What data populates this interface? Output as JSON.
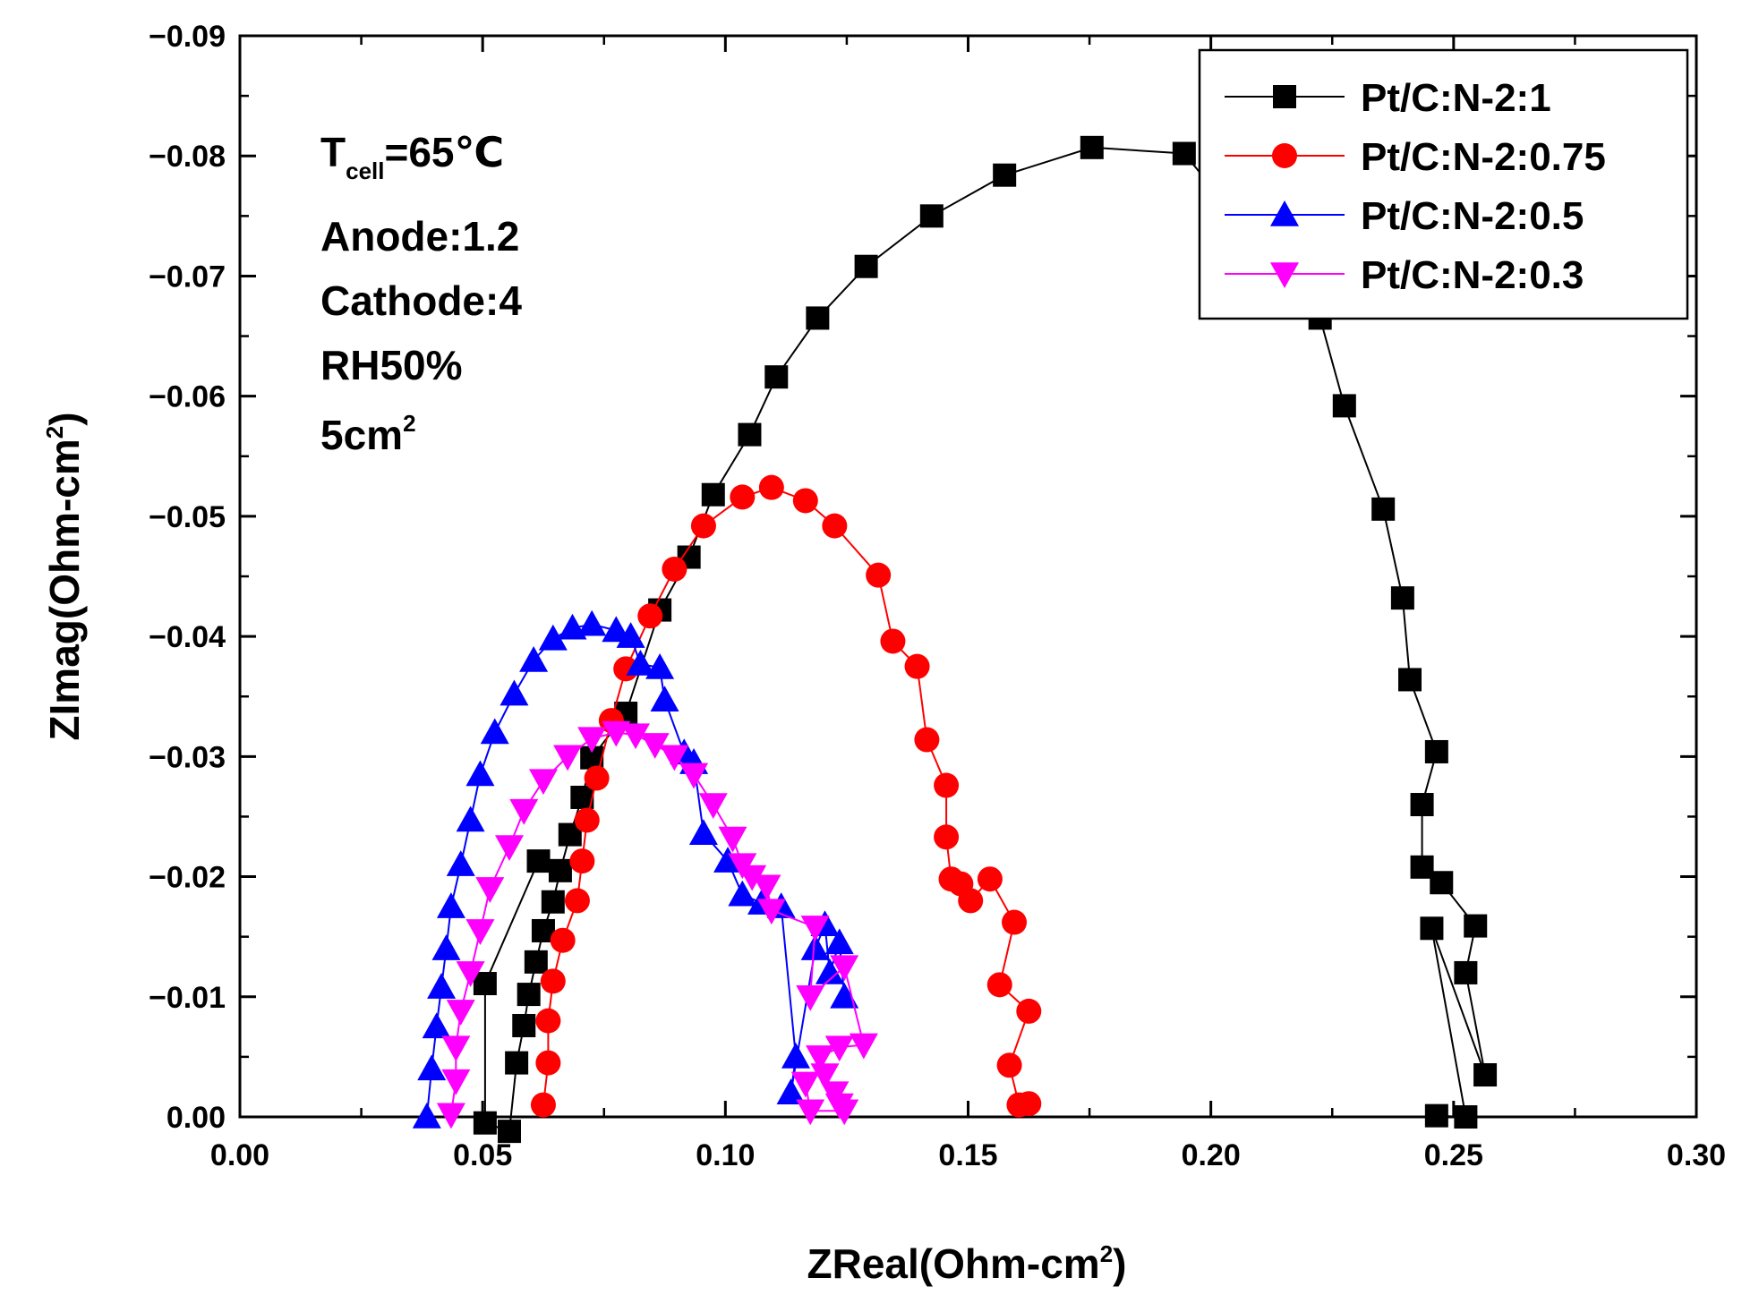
{
  "chart_data": {
    "type": "scatter",
    "title": "",
    "xlabel": "ZReal(Ohm-cm",
    "xlabel_sup": "2",
    "xlabel_close": ")",
    "ylabel": "ZImag(Ohm-cm",
    "ylabel_sup": "2",
    "ylabel_close": ")",
    "xlim": [
      0,
      0.3
    ],
    "ylim": [
      0,
      -0.09
    ],
    "xticks": [
      "0.00",
      "0.05",
      "0.10",
      "0.15",
      "0.20",
      "0.25",
      "0.30"
    ],
    "yticks": [
      "0.00",
      "−0.01",
      "−0.02",
      "−0.03",
      "−0.04",
      "−0.05",
      "−0.06",
      "−0.07",
      "−0.08",
      "−0.09"
    ],
    "legend_position": "top-right",
    "annotations": {
      "tcell_main": "T",
      "tcell_sub": "cell",
      "tcell_value": "=65℃",
      "anode": "Anode:1.2",
      "cathode": "Cathode:4",
      "rh": "RH50%",
      "area_main": "5cm",
      "area_sup": "2"
    },
    "series": [
      {
        "name": "Pt/C:N-2:1",
        "color": "#000000",
        "marker": "square",
        "points": [
          [
            0.0615,
            -0.0213
          ],
          [
            0.0505,
            -0.0111
          ],
          [
            0.0505,
            0.0005
          ],
          [
            0.0555,
            0.0012
          ],
          [
            0.057,
            -0.0045
          ],
          [
            0.0585,
            -0.0076
          ],
          [
            0.0595,
            -0.0102
          ],
          [
            0.061,
            -0.0129
          ],
          [
            0.0625,
            -0.0155
          ],
          [
            0.0645,
            -0.0179
          ],
          [
            0.066,
            -0.0205
          ],
          [
            0.068,
            -0.0235
          ],
          [
            0.0705,
            -0.0266
          ],
          [
            0.0725,
            -0.0299
          ],
          [
            0.0795,
            -0.0336
          ],
          [
            0.0865,
            -0.0422
          ],
          [
            0.0925,
            -0.0466
          ],
          [
            0.0975,
            -0.0518
          ],
          [
            0.105,
            -0.0568
          ],
          [
            0.1105,
            -0.0616
          ],
          [
            0.119,
            -0.0665
          ],
          [
            0.129,
            -0.0708
          ],
          [
            0.1425,
            -0.075
          ],
          [
            0.1575,
            -0.0784
          ],
          [
            0.1755,
            -0.0807
          ],
          [
            0.1945,
            -0.0802
          ],
          [
            0.2225,
            -0.0665
          ],
          [
            0.2275,
            -0.0592
          ],
          [
            0.2355,
            -0.0506
          ],
          [
            0.2395,
            -0.0432
          ],
          [
            0.241,
            -0.0364
          ],
          [
            0.2465,
            -0.0304
          ],
          [
            0.2435,
            -0.026
          ],
          [
            0.2435,
            -0.0208
          ],
          [
            0.2475,
            -0.0195
          ],
          [
            0.2545,
            -0.0159
          ],
          [
            0.2525,
            -0.012
          ],
          [
            0.2565,
            -0.0035
          ],
          [
            0.2455,
            -0.0157
          ],
          [
            0.2525,
            0.0
          ],
          [
            0.2465,
            -0.0001
          ]
        ]
      },
      {
        "name": "Pt/C:N-2:0.75",
        "color": "#ff0000",
        "marker": "circle",
        "points": [
          [
            0.0625,
            -0.001
          ],
          [
            0.0635,
            -0.0045
          ],
          [
            0.0635,
            -0.008
          ],
          [
            0.0645,
            -0.0113
          ],
          [
            0.0665,
            -0.0147
          ],
          [
            0.0695,
            -0.018
          ],
          [
            0.0705,
            -0.0213
          ],
          [
            0.0715,
            -0.0247
          ],
          [
            0.0735,
            -0.0282
          ],
          [
            0.0765,
            -0.033
          ],
          [
            0.0795,
            -0.0373
          ],
          [
            0.0845,
            -0.0417
          ],
          [
            0.0895,
            -0.0456
          ],
          [
            0.0955,
            -0.0492
          ],
          [
            0.1035,
            -0.0516
          ],
          [
            0.1095,
            -0.0524
          ],
          [
            0.1165,
            -0.0513
          ],
          [
            0.1225,
            -0.0492
          ],
          [
            0.1315,
            -0.0451
          ],
          [
            0.1345,
            -0.0396
          ],
          [
            0.1395,
            -0.0375
          ],
          [
            0.1415,
            -0.0314
          ],
          [
            0.1455,
            -0.0276
          ],
          [
            0.1455,
            -0.0233
          ],
          [
            0.1465,
            -0.0198
          ],
          [
            0.1485,
            -0.0194
          ],
          [
            0.1505,
            -0.018
          ],
          [
            0.1545,
            -0.0198
          ],
          [
            0.1595,
            -0.0162
          ],
          [
            0.1565,
            -0.011
          ],
          [
            0.1625,
            -0.0088
          ],
          [
            0.1585,
            -0.0043
          ],
          [
            0.1605,
            -0.001
          ],
          [
            0.1625,
            -0.0011
          ]
        ]
      },
      {
        "name": "Pt/C:N-2:0.5",
        "color": "#0000ff",
        "marker": "triangle-up",
        "points": [
          [
            0.0385,
            0.0
          ],
          [
            0.0395,
            -0.004
          ],
          [
            0.0405,
            -0.0075
          ],
          [
            0.0415,
            -0.0108
          ],
          [
            0.0425,
            -0.014
          ],
          [
            0.0435,
            -0.0175
          ],
          [
            0.0455,
            -0.021
          ],
          [
            0.0475,
            -0.0247
          ],
          [
            0.0495,
            -0.0285
          ],
          [
            0.0525,
            -0.032
          ],
          [
            0.0565,
            -0.0352
          ],
          [
            0.0605,
            -0.038
          ],
          [
            0.0645,
            -0.0398
          ],
          [
            0.0685,
            -0.0407
          ],
          [
            0.0725,
            -0.041
          ],
          [
            0.0775,
            -0.0405
          ],
          [
            0.0805,
            -0.04
          ],
          [
            0.0825,
            -0.0377
          ],
          [
            0.0865,
            -0.0374
          ],
          [
            0.0875,
            -0.0347
          ],
          [
            0.0915,
            -0.0303
          ],
          [
            0.0935,
            -0.0295
          ],
          [
            0.0955,
            -0.0236
          ],
          [
            0.1005,
            -0.0213
          ],
          [
            0.1035,
            -0.0185
          ],
          [
            0.1075,
            -0.0178
          ],
          [
            0.1115,
            -0.0175
          ],
          [
            0.1145,
            -0.005
          ],
          [
            0.1135,
            -0.002
          ],
          [
            0.1185,
            -0.014
          ],
          [
            0.1205,
            -0.016
          ],
          [
            0.1215,
            -0.012
          ],
          [
            0.1235,
            -0.0145
          ],
          [
            0.1245,
            -0.01
          ]
        ]
      },
      {
        "name": "Pt/C:N-2:0.3",
        "color": "#ff00ff",
        "marker": "triangle-down",
        "points": [
          [
            0.0435,
            -0.0002
          ],
          [
            0.0445,
            -0.003
          ],
          [
            0.0445,
            -0.0058
          ],
          [
            0.0455,
            -0.0088
          ],
          [
            0.0475,
            -0.012
          ],
          [
            0.0495,
            -0.0155
          ],
          [
            0.0515,
            -0.019
          ],
          [
            0.0555,
            -0.0225
          ],
          [
            0.0585,
            -0.0255
          ],
          [
            0.0625,
            -0.028
          ],
          [
            0.0675,
            -0.03
          ],
          [
            0.0725,
            -0.0315
          ],
          [
            0.0775,
            -0.032
          ],
          [
            0.0815,
            -0.0318
          ],
          [
            0.0855,
            -0.031
          ],
          [
            0.0895,
            -0.03
          ],
          [
            0.0935,
            -0.0285
          ],
          [
            0.0975,
            -0.026
          ],
          [
            0.1015,
            -0.0232
          ],
          [
            0.1035,
            -0.021
          ],
          [
            0.1055,
            -0.02
          ],
          [
            0.1085,
            -0.0192
          ],
          [
            0.1095,
            -0.0172
          ],
          [
            0.1185,
            -0.0158
          ],
          [
            0.1175,
            -0.01
          ],
          [
            0.1245,
            -0.0125
          ],
          [
            0.1285,
            -0.006
          ],
          [
            0.1235,
            -0.0058
          ],
          [
            0.1195,
            -0.005
          ],
          [
            0.1205,
            -0.0035
          ],
          [
            0.1225,
            -0.002
          ],
          [
            0.1235,
            -0.001
          ],
          [
            0.1245,
            -0.0005
          ],
          [
            0.1175,
            -0.0005
          ],
          [
            0.1165,
            -0.0028
          ]
        ]
      }
    ]
  }
}
